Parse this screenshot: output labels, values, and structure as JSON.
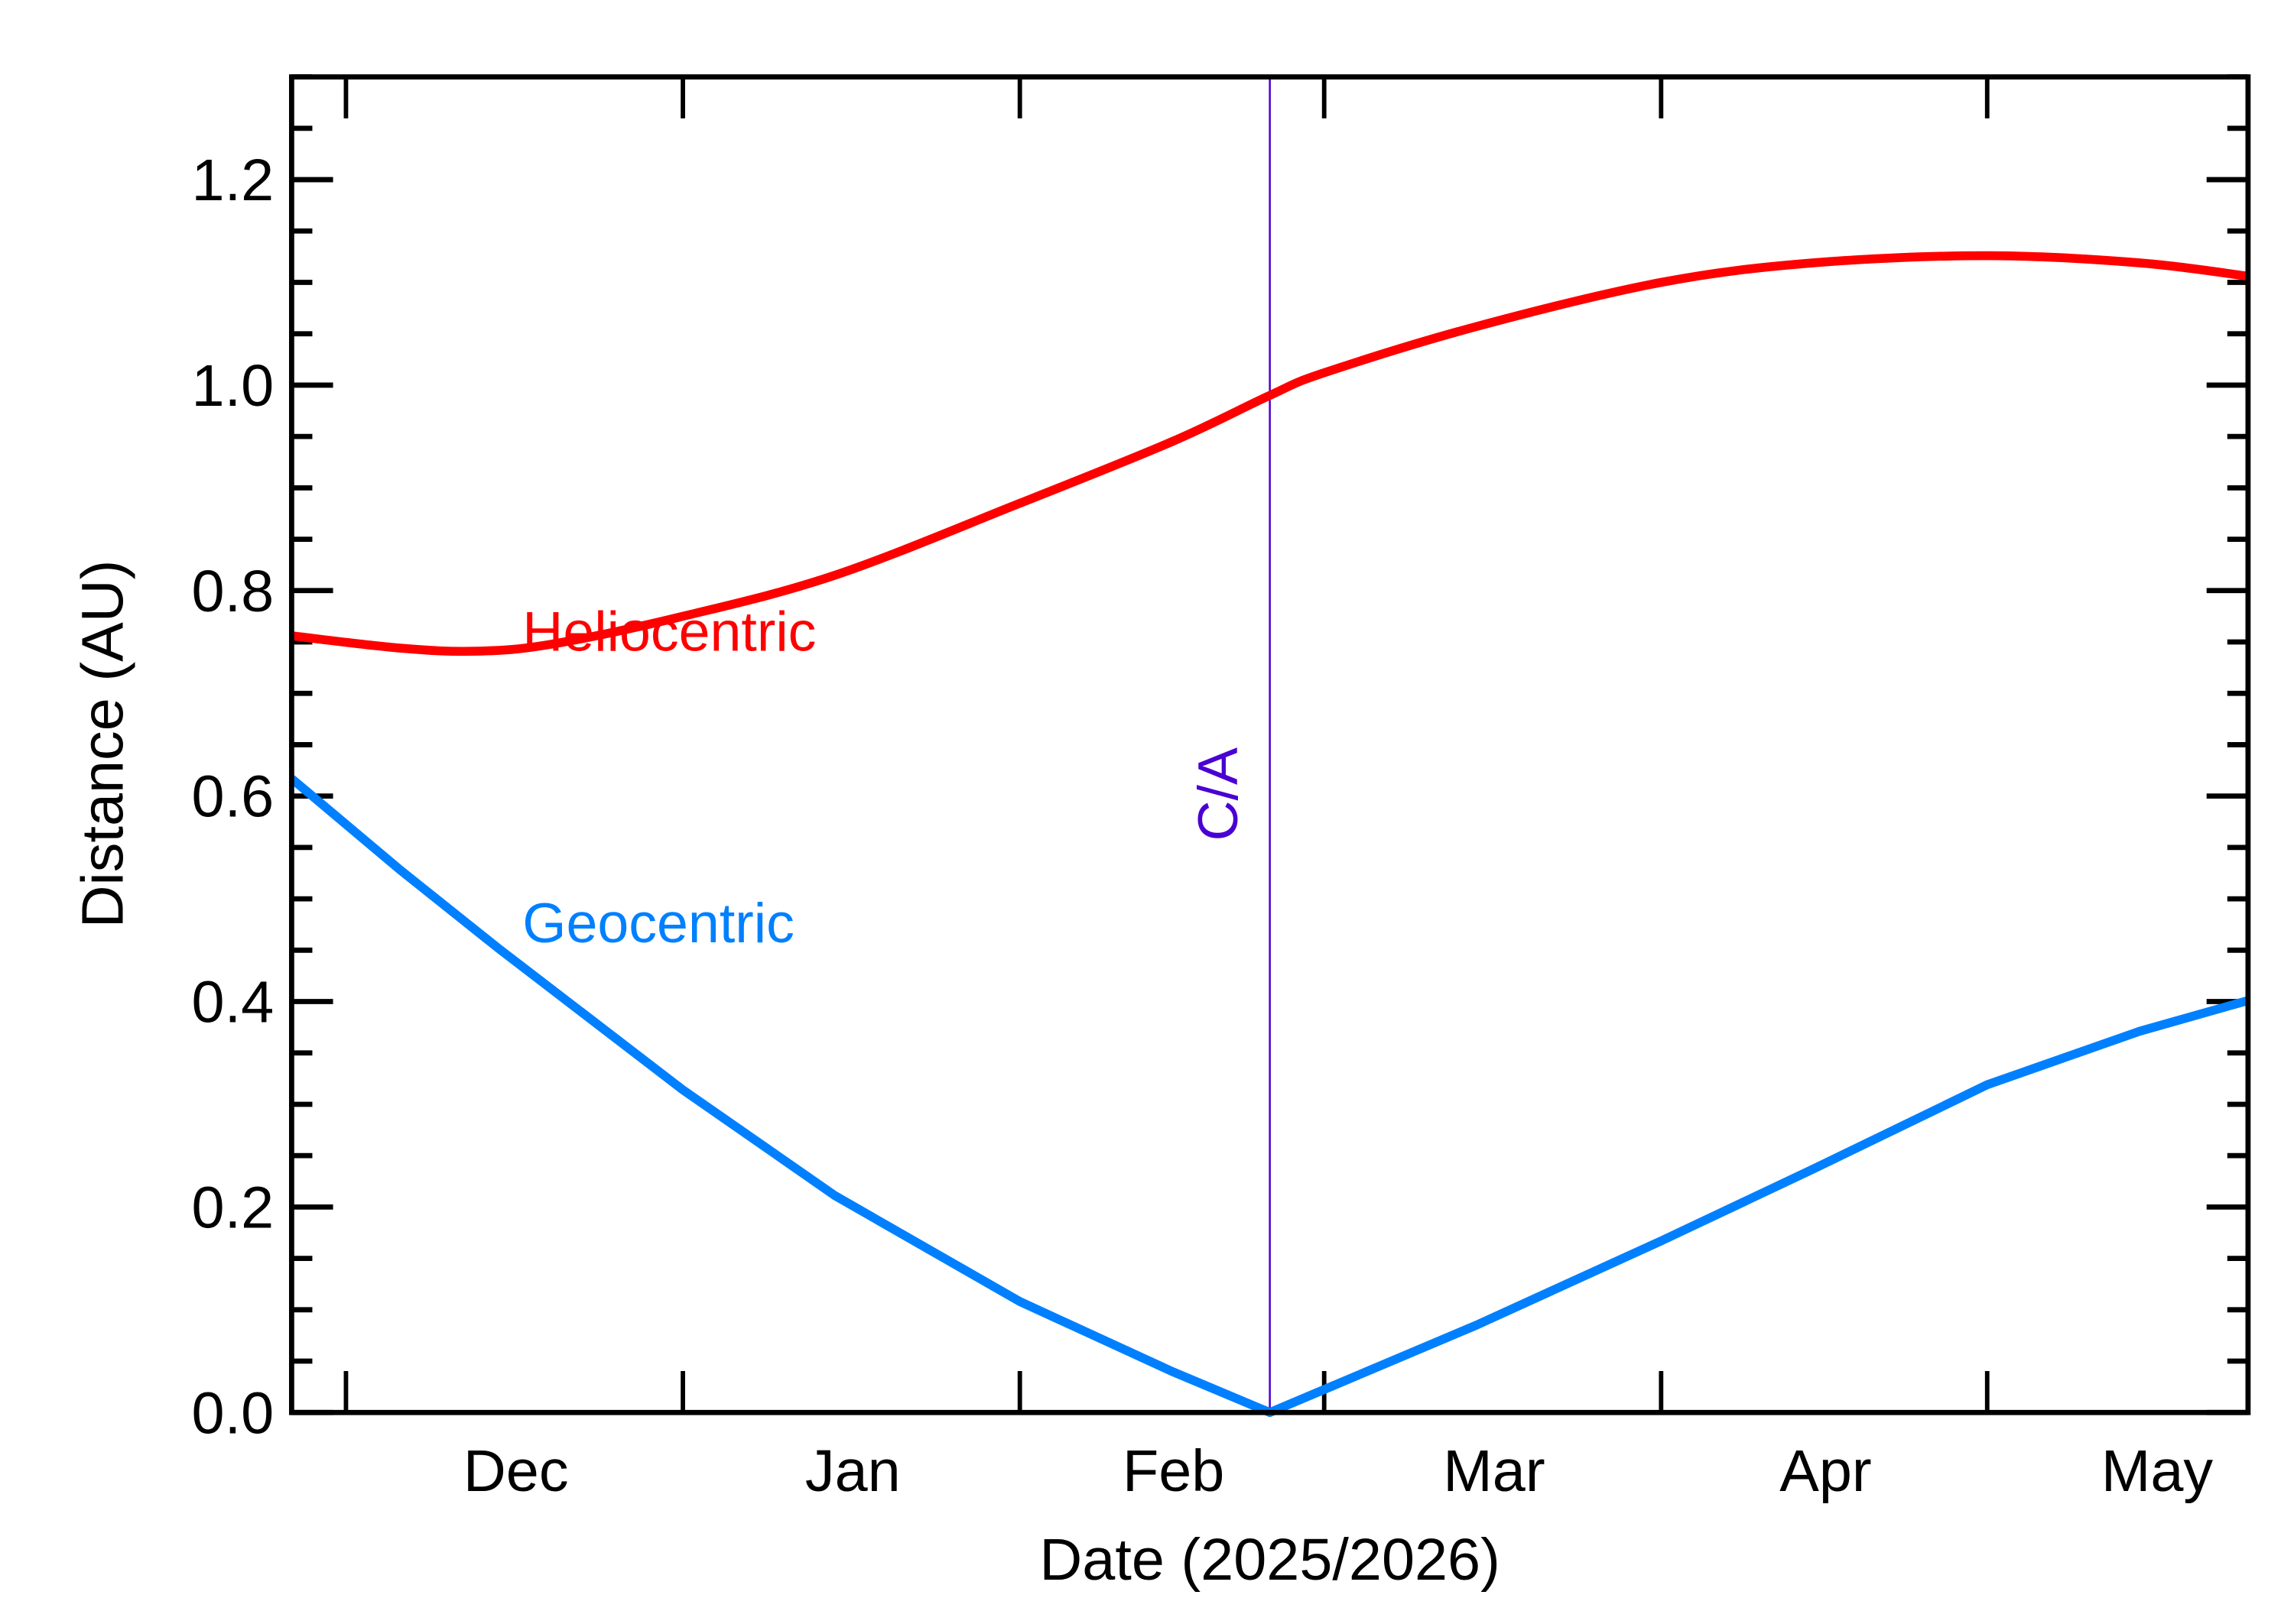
{
  "chart_data": {
    "type": "line",
    "title": "",
    "xlabel": "Date (2025/2026)",
    "ylabel": "Distance (AU)",
    "xlim": [
      "2025-11-26",
      "2026-05-25"
    ],
    "ylim": [
      0,
      1.3
    ],
    "yticks": [
      "0.0",
      "0.2",
      "0.4",
      "0.6",
      "0.8",
      "1.0",
      "1.2"
    ],
    "xticks": [
      {
        "label": "Dec",
        "start": "2025-12-01",
        "end": "2026-01-01"
      },
      {
        "label": "Jan",
        "start": "2026-01-01",
        "end": "2026-02-01"
      },
      {
        "label": "Feb",
        "start": "2026-02-01",
        "end": "2026-03-01"
      },
      {
        "label": "Mar",
        "start": "2026-03-01",
        "end": "2026-04-01"
      },
      {
        "label": "Apr",
        "start": "2026-04-01",
        "end": "2026-05-01"
      },
      {
        "label": "May",
        "start": "2026-05-01",
        "end": "2026-06-01"
      }
    ],
    "grid": false,
    "annotation": {
      "label": "C/A",
      "date": "2026-02-24",
      "color": "#4a00d4"
    },
    "series": [
      {
        "name": "Heliocentric",
        "color": "#ff0000",
        "x": [
          "2025-11-26",
          "2025-12-06",
          "2025-12-13",
          "2025-12-20",
          "2026-01-01",
          "2026-01-15",
          "2026-02-01",
          "2026-02-15",
          "2026-02-24",
          "2026-03-01",
          "2026-03-15",
          "2026-04-01",
          "2026-04-15",
          "2026-05-01",
          "2026-05-15",
          "2026-05-25"
        ],
        "y": [
          0.756,
          0.744,
          0.741,
          0.748,
          0.775,
          0.815,
          0.885,
          0.945,
          0.99,
          1.012,
          1.057,
          1.1,
          1.119,
          1.126,
          1.119,
          1.106
        ]
      },
      {
        "name": "Geocentric",
        "color": "#0080ff",
        "x": [
          "2025-11-26",
          "2025-12-06",
          "2025-12-15",
          "2026-01-01",
          "2026-01-15",
          "2026-02-01",
          "2026-02-15",
          "2026-02-24",
          "2026-03-15",
          "2026-04-01",
          "2026-04-15",
          "2026-05-01",
          "2026-05-15",
          "2026-05-25"
        ],
        "y": [
          0.617,
          0.528,
          0.452,
          0.314,
          0.211,
          0.108,
          0.04,
          0.0,
          0.085,
          0.167,
          0.237,
          0.319,
          0.371,
          0.401
        ]
      }
    ]
  }
}
